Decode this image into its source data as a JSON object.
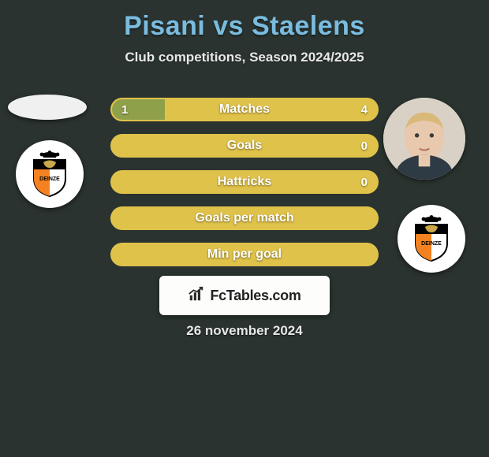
{
  "header": {
    "title": "Pisani vs Staelens",
    "title_color": "#7abce0",
    "subtitle": "Club competitions, Season 2024/2025",
    "subtitle_color": "#e8e8e8"
  },
  "background_color": "#2a332f",
  "bars": {
    "border_color": "#e0c24a",
    "base_color": "#dfc24a",
    "fill_color": "#8fa04a",
    "label_color": "#ffffff",
    "rows": [
      {
        "label": "Matches",
        "left_val": "1",
        "right_val": "4",
        "left_pct": 20
      },
      {
        "label": "Goals",
        "left_val": "",
        "right_val": "0",
        "left_pct": 0
      },
      {
        "label": "Hattricks",
        "left_val": "",
        "right_val": "0",
        "left_pct": 0
      },
      {
        "label": "Goals per match",
        "left_val": "",
        "right_val": "",
        "left_pct": 0
      },
      {
        "label": "Min per goal",
        "left_val": "",
        "right_val": "",
        "left_pct": 0
      }
    ]
  },
  "left_player": {
    "name": "Pisani",
    "avatar_bg": "#f0f0f0"
  },
  "right_player": {
    "name": "Staelens",
    "avatar_bg": "#d9d1c6",
    "hair_color": "#d9b97a",
    "skin_color": "#e9c9ad"
  },
  "club_badge": {
    "bg": "#ffffff",
    "shield_top": "#000000",
    "shield_left": "#f58220",
    "shield_right": "#ffffff",
    "shield_border": "#000000",
    "crown_color": "#000000",
    "text": "DEINZE"
  },
  "logo": {
    "bg": "#fdfdfb",
    "icon_color": "#2c2c2c",
    "text": "FcTables.com",
    "text_color": "#222222"
  },
  "date": "26 november 2024"
}
